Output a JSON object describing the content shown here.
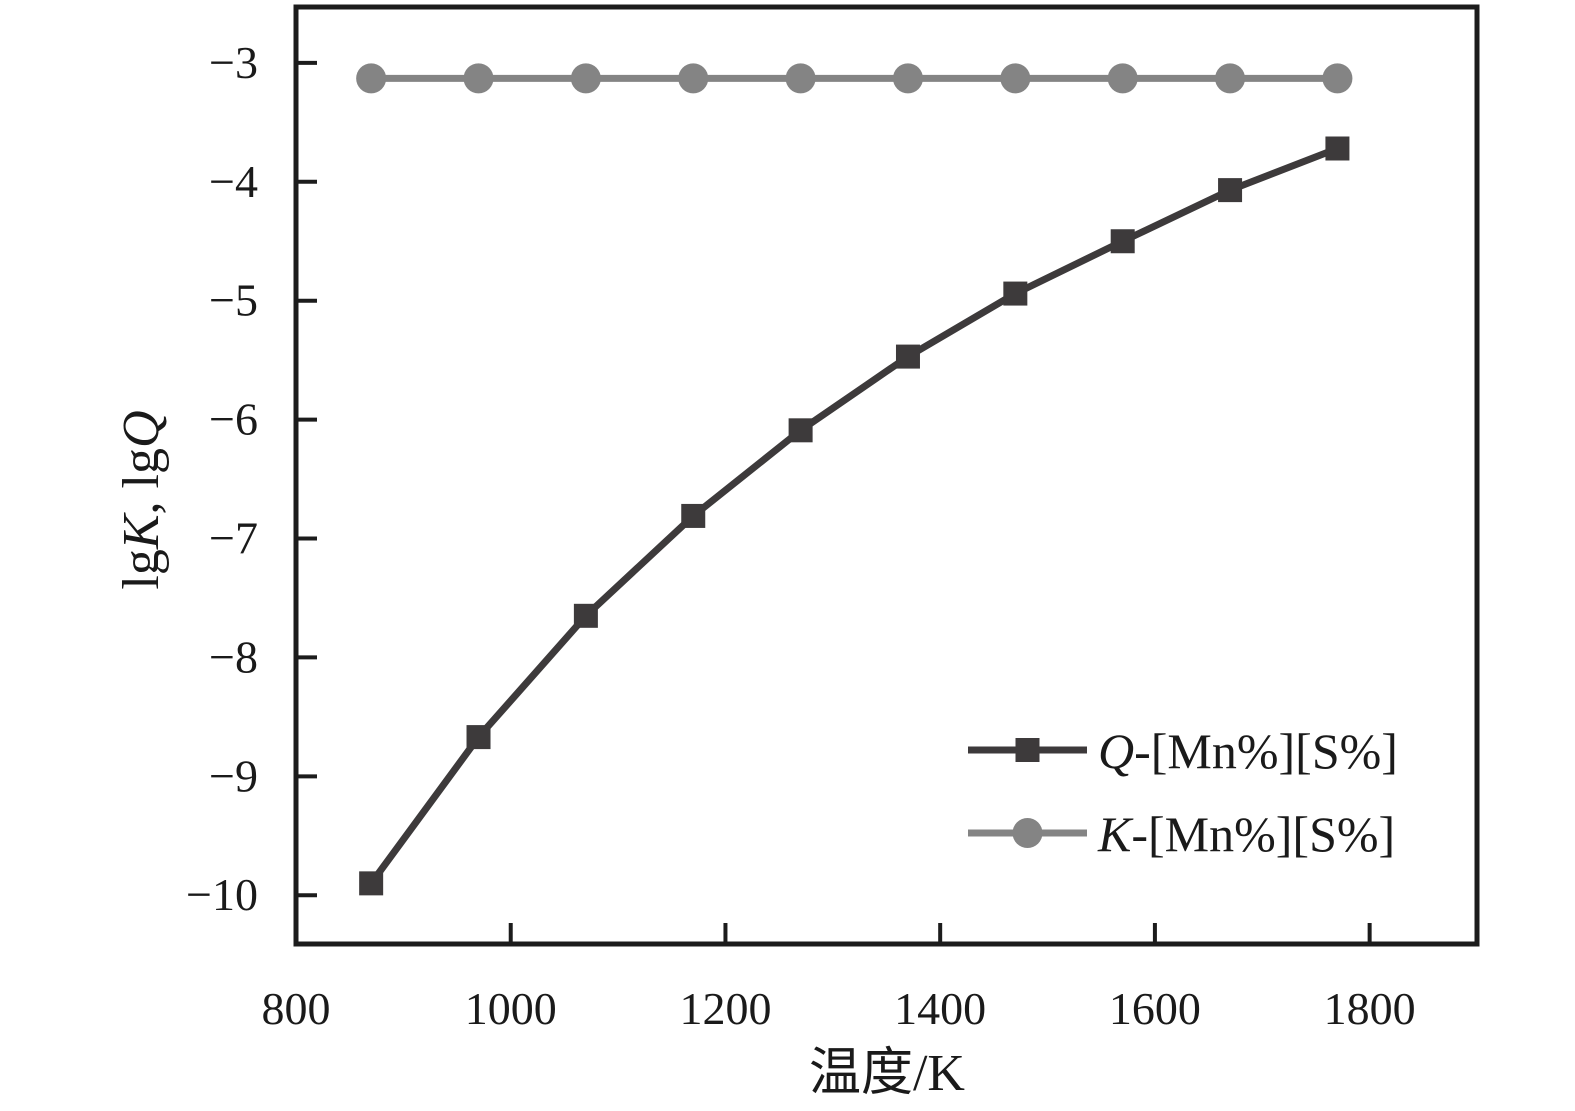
{
  "figure": {
    "background": "#ffffff"
  },
  "chart_data": {
    "type": "line",
    "title": "",
    "xlabel": "温度/K",
    "ylabel": "lgK, lgQ",
    "ylabel_segments": [
      {
        "text": "lg",
        "italic": false
      },
      {
        "text": "K",
        "italic": true
      },
      {
        "text": ", lg",
        "italic": false
      },
      {
        "text": "Q",
        "italic": true
      }
    ],
    "x_ticks": [
      800,
      1000,
      1200,
      1400,
      1600,
      1800
    ],
    "y_ticks": [
      -3,
      -4,
      -5,
      -6,
      -7,
      -8,
      -9,
      -10
    ],
    "xlim": [
      800,
      1900
    ],
    "ylim": [
      -10.41,
      -2.53
    ],
    "grid": false,
    "tick_direction": "in",
    "legend_position": "inside-lower-right",
    "x": [
      870,
      970,
      1070,
      1170,
      1270,
      1370,
      1470,
      1570,
      1670,
      1770
    ],
    "series": [
      {
        "name": "Q-[Mn%][S%]",
        "label_italic_prefix": "Q",
        "label_rest": "-[Mn%][S%]",
        "marker": "square",
        "color": "#3d3a3b",
        "values": [
          -9.9,
          -8.67,
          -7.65,
          -6.81,
          -6.09,
          -5.47,
          -4.94,
          -4.5,
          -4.07,
          -3.72
        ]
      },
      {
        "name": "K-[Mn%][S%]",
        "label_italic_prefix": "K",
        "label_rest": "-[Mn%][S%]",
        "marker": "circle",
        "color": "#848484",
        "values": [
          -3.13,
          -3.13,
          -3.13,
          -3.13,
          -3.13,
          -3.13,
          -3.13,
          -3.13,
          -3.13,
          -3.13
        ]
      }
    ],
    "colors": {
      "axis": "#1c1c1c",
      "text": "#1a1a1a"
    }
  }
}
